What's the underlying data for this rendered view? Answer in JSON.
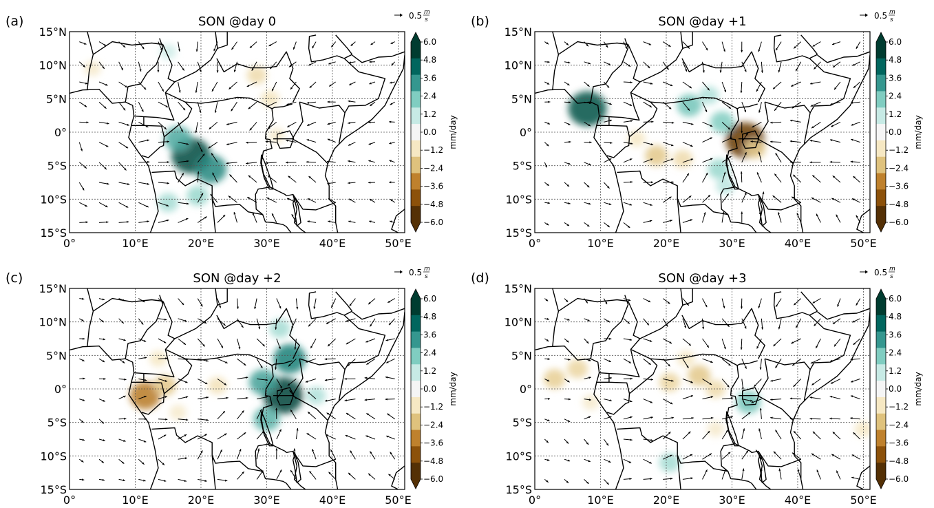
{
  "colors": {
    "cbar": [
      "#543005",
      "#8c510a",
      "#bf812d",
      "#dfc27d",
      "#f6e8c3",
      "#f5f5f5",
      "#c7eae5",
      "#80cdc1",
      "#35978f",
      "#01665e",
      "#003c30"
    ],
    "land_lines": "#000000",
    "grid": "#555555"
  },
  "common": {
    "xticks": [
      "0°",
      "10°E",
      "20°E",
      "30°E",
      "40°E",
      "50°E"
    ],
    "yticks": [
      "15°N",
      "10°N",
      "5°N",
      "0°",
      "5°S",
      "10°S",
      "15°S"
    ],
    "cbar_ticks": [
      "6.0",
      "4.8",
      "3.6",
      "2.4",
      "1.2",
      "0.0",
      "−1.2",
      "−2.4",
      "−3.6",
      "−4.8",
      "−6.0"
    ],
    "cbar_label": "mm/day",
    "ref_vector_label": "0.5",
    "ref_vector_unit_num": "m",
    "ref_vector_unit_den": "s"
  },
  "panels": [
    {
      "id": "a",
      "panel_label": "(a)",
      "title": "SON @day 0"
    },
    {
      "id": "b",
      "panel_label": "(b)",
      "title": "SON @day +1"
    },
    {
      "id": "c",
      "panel_label": "(c)",
      "title": "SON @day +2"
    },
    {
      "id": "d",
      "panel_label": "(d)",
      "title": "SON @day +3"
    }
  ],
  "chart_data": [
    {
      "type": "heatmap",
      "title": "SON @day 0",
      "variable": "precipitation anomaly (mm/day) with wind anomaly vectors",
      "xlim": [
        0,
        51
      ],
      "ylim": [
        -15,
        15
      ],
      "clim": [
        -6.0,
        6.0
      ],
      "wind_convergence_center": {
        "lon": 20,
        "lat": -3
      },
      "anomalies": [
        {
          "lon": 18.5,
          "lat": -3.5,
          "value": 5.6
        },
        {
          "lon": 16.5,
          "lat": -1.0,
          "value": 3.2
        },
        {
          "lon": 21.5,
          "lat": -5.5,
          "value": 4.0
        },
        {
          "lon": 15.0,
          "lat": -10.5,
          "value": 1.8
        },
        {
          "lon": 19.5,
          "lat": -9.5,
          "value": 2.0
        },
        {
          "lon": 28.5,
          "lat": 8.5,
          "value": -1.6
        },
        {
          "lon": 30.5,
          "lat": 5.0,
          "value": -1.3
        },
        {
          "lon": 31.5,
          "lat": -0.5,
          "value": -1.0
        },
        {
          "lon": 15.0,
          "lat": 12.0,
          "value": 1.0
        },
        {
          "lon": 3.5,
          "lat": 9.5,
          "value": -1.0
        }
      ]
    },
    {
      "type": "heatmap",
      "title": "SON @day +1",
      "variable": "precipitation anomaly (mm/day) with wind anomaly vectors",
      "xlim": [
        0,
        51
      ],
      "ylim": [
        -15,
        15
      ],
      "clim": [
        -6.0,
        6.0
      ],
      "wind_convergence_center": {
        "lon": 32,
        "lat": -1
      },
      "anomalies": [
        {
          "lon": 32.0,
          "lat": -1.2,
          "value": -5.6
        },
        {
          "lon": 33.5,
          "lat": -2.5,
          "value": -2.0
        },
        {
          "lon": 8.0,
          "lat": 3.5,
          "value": 5.4
        },
        {
          "lon": 23.5,
          "lat": 4.0,
          "value": 2.6
        },
        {
          "lon": 28.5,
          "lat": 1.5,
          "value": 2.4
        },
        {
          "lon": 28.0,
          "lat": -5.5,
          "value": 2.0
        },
        {
          "lon": 29.0,
          "lat": -8.0,
          "value": 1.4
        },
        {
          "lon": 18.5,
          "lat": -3.5,
          "value": -2.2
        },
        {
          "lon": 22.5,
          "lat": -4.0,
          "value": -1.6
        },
        {
          "lon": 15.5,
          "lat": -1.0,
          "value": -1.2
        },
        {
          "lon": 26.5,
          "lat": 5.5,
          "value": 1.6
        }
      ]
    },
    {
      "type": "heatmap",
      "title": "SON @day +2",
      "variable": "precipitation anomaly (mm/day) with wind anomaly vectors",
      "xlim": [
        0,
        51
      ],
      "ylim": [
        -15,
        15
      ],
      "clim": [
        -6.0,
        6.0
      ],
      "wind_convergence_center": {
        "lon": 32,
        "lat": 0
      },
      "anomalies": [
        {
          "lon": 32.5,
          "lat": -1.0,
          "value": 5.8
        },
        {
          "lon": 33.5,
          "lat": 4.5,
          "value": 4.2
        },
        {
          "lon": 29.5,
          "lat": 1.0,
          "value": 3.4
        },
        {
          "lon": 30.0,
          "lat": -4.5,
          "value": 3.0
        },
        {
          "lon": 32.0,
          "lat": 9.0,
          "value": 1.8
        },
        {
          "lon": 37.5,
          "lat": -1.0,
          "value": 1.6
        },
        {
          "lon": 11.5,
          "lat": -1.0,
          "value": -3.8
        },
        {
          "lon": 14.5,
          "lat": 0.5,
          "value": -2.2
        },
        {
          "lon": 22.5,
          "lat": 0.5,
          "value": -1.4
        },
        {
          "lon": 13.5,
          "lat": 4.5,
          "value": -1.2
        },
        {
          "lon": 16.5,
          "lat": -3.5,
          "value": -1.0
        }
      ]
    },
    {
      "type": "heatmap",
      "title": "SON @day +3",
      "variable": "precipitation anomaly (mm/day) with wind anomaly vectors",
      "xlim": [
        0,
        51
      ],
      "ylim": [
        -15,
        15
      ],
      "clim": [
        -6.0,
        6.0
      ],
      "wind_convergence_center": {
        "lon": 33,
        "lat": -2
      },
      "anomalies": [
        {
          "lon": 3.0,
          "lat": 1.5,
          "value": -2.0
        },
        {
          "lon": 6.5,
          "lat": 3.0,
          "value": -1.8
        },
        {
          "lon": 20.5,
          "lat": 1.0,
          "value": -1.8
        },
        {
          "lon": 25.0,
          "lat": 2.0,
          "value": -2.2
        },
        {
          "lon": 27.5,
          "lat": 0.0,
          "value": -1.6
        },
        {
          "lon": 23.0,
          "lat": 4.5,
          "value": -1.2
        },
        {
          "lon": 32.5,
          "lat": -2.0,
          "value": 2.6
        },
        {
          "lon": 20.5,
          "lat": -11.0,
          "value": 1.8
        },
        {
          "lon": 8.5,
          "lat": -2.0,
          "value": -1.0
        },
        {
          "lon": 50.0,
          "lat": -6.0,
          "value": -1.2
        },
        {
          "lon": 27.5,
          "lat": -6.0,
          "value": -1.0
        }
      ]
    }
  ]
}
